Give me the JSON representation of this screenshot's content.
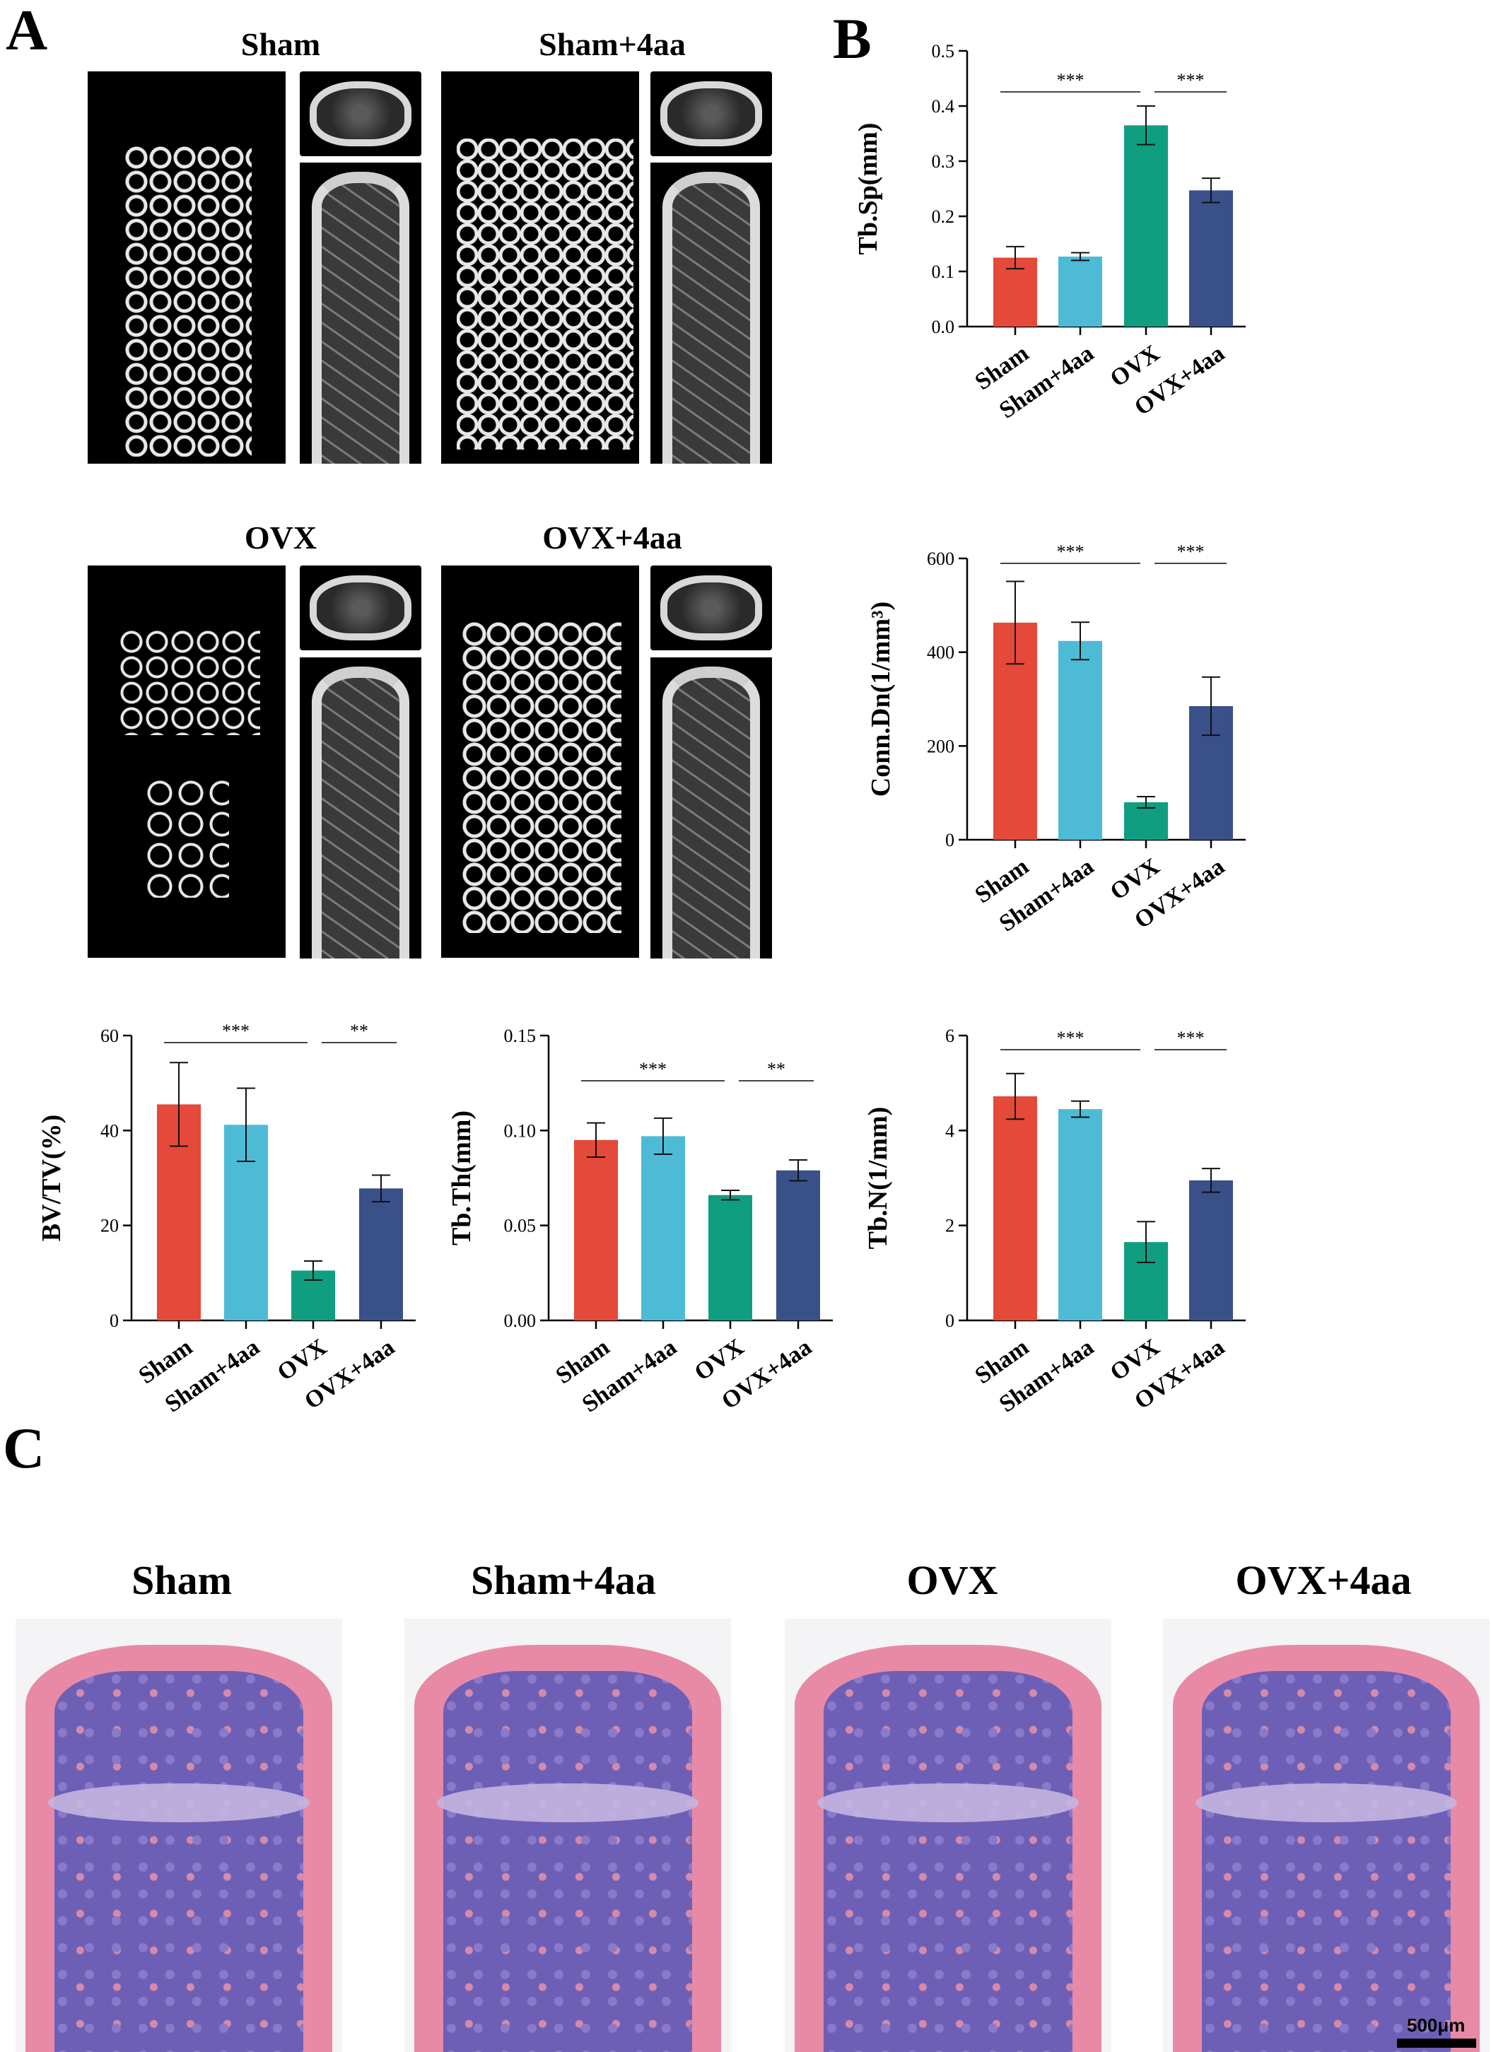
{
  "panels": {
    "a": "A",
    "b": "B",
    "c": "C"
  },
  "ct_titles": [
    "Sham",
    "Sham+4aa",
    "OVX",
    "OVX+4aa"
  ],
  "he_titles": [
    "Sham",
    "Sham+4aa",
    "OVX",
    "OVX+4aa"
  ],
  "scale_bar_label": "500μm",
  "colors": {
    "Sham": "#e4493a",
    "Sham+4aa": "#4ebbd6",
    "OVX": "#0f9e80",
    "OVX+4aa": "#3a5089"
  },
  "chart_data": [
    {
      "id": "tbsp",
      "type": "bar",
      "categories": [
        "Sham",
        "Sham+4aa",
        "OVX",
        "OVX+4aa"
      ],
      "values": [
        0.125,
        0.127,
        0.365,
        0.247
      ],
      "errors": [
        0.02,
        0.007,
        0.035,
        0.022
      ],
      "ylabel": "Tb.Sp(mm)",
      "ylim": [
        0,
        0.5
      ],
      "yticks": [
        "0.0",
        "0.1",
        "0.2",
        "0.3",
        "0.4",
        "0.5"
      ],
      "significance": [
        {
          "from": 0,
          "to": 2,
          "label": "***"
        },
        {
          "from": 2,
          "to": 3,
          "label": "***"
        }
      ]
    },
    {
      "id": "conn",
      "type": "bar",
      "categories": [
        "Sham",
        "Sham+4aa",
        "OVX",
        "OVX+4aa"
      ],
      "values": [
        463,
        424,
        80,
        285
      ],
      "errors": [
        88,
        40,
        12,
        62
      ],
      "ylabel": "Conn.Dn(1/mm³)",
      "ylim": [
        0,
        600
      ],
      "yticks": [
        "0",
        "200",
        "400",
        "600"
      ],
      "significance": [
        {
          "from": 0,
          "to": 2,
          "label": "***"
        },
        {
          "from": 2,
          "to": 3,
          "label": "***"
        }
      ]
    },
    {
      "id": "bvtv",
      "type": "bar",
      "categories": [
        "Sham",
        "Sham+4aa",
        "OVX",
        "OVX+4aa"
      ],
      "values": [
        45.5,
        41.2,
        10.5,
        27.8
      ],
      "errors": [
        8.8,
        7.7,
        2.0,
        2.8
      ],
      "ylabel": "BV/TV(%)",
      "ylim": [
        0,
        60
      ],
      "yticks": [
        "0",
        "20",
        "40",
        "60"
      ],
      "significance": [
        {
          "from": 0,
          "to": 2,
          "label": "***"
        },
        {
          "from": 2,
          "to": 3,
          "label": "**"
        }
      ]
    },
    {
      "id": "tbth",
      "type": "bar",
      "categories": [
        "Sham",
        "Sham+4aa",
        "OVX",
        "OVX+4aa"
      ],
      "values": [
        0.095,
        0.097,
        0.066,
        0.079
      ],
      "errors": [
        0.009,
        0.0095,
        0.0025,
        0.0055
      ],
      "ylabel": "Tb.Th(mm)",
      "ylim": [
        0,
        0.15
      ],
      "yticks": [
        "0.00",
        "0.05",
        "0.10",
        "0.15"
      ],
      "significance": [
        {
          "from": 0,
          "to": 2,
          "label": "***"
        },
        {
          "from": 2,
          "to": 3,
          "label": "**"
        }
      ]
    },
    {
      "id": "tbn",
      "type": "bar",
      "categories": [
        "Sham",
        "Sham+4aa",
        "OVX",
        "OVX+4aa"
      ],
      "values": [
        4.72,
        4.45,
        1.65,
        2.95
      ],
      "errors": [
        0.48,
        0.17,
        0.43,
        0.25
      ],
      "ylabel": "Tb.N(1/mm)",
      "ylim": [
        0,
        6
      ],
      "yticks": [
        "0",
        "2",
        "4",
        "6"
      ],
      "significance": [
        {
          "from": 0,
          "to": 2,
          "label": "***"
        },
        {
          "from": 2,
          "to": 3,
          "label": "***"
        }
      ]
    }
  ]
}
